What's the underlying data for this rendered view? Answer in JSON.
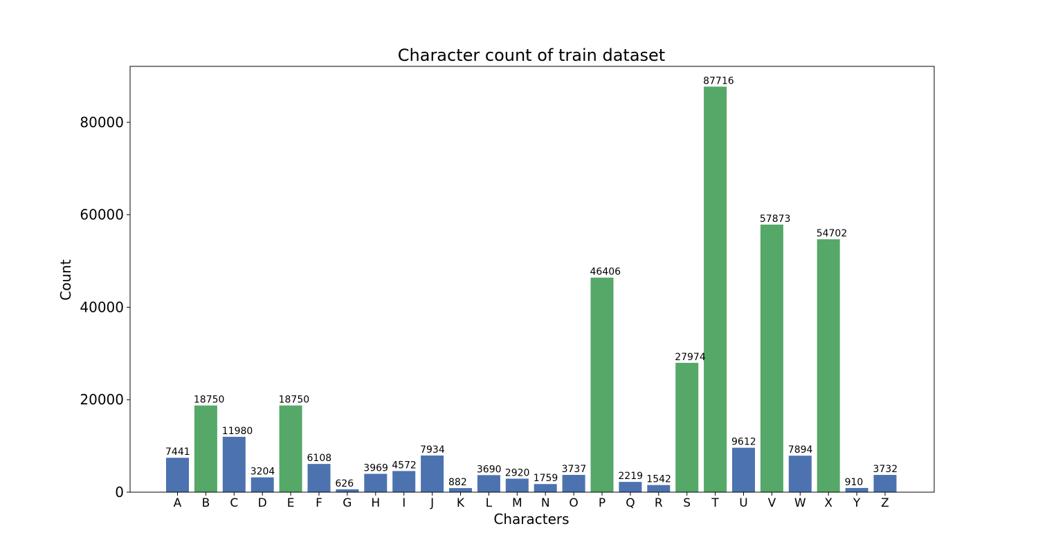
{
  "chart_data": {
    "type": "bar",
    "title": "Character count of train dataset",
    "xlabel": "Characters",
    "ylabel": "Count",
    "categories": [
      "A",
      "B",
      "C",
      "D",
      "E",
      "F",
      "G",
      "H",
      "I",
      "J",
      "K",
      "L",
      "M",
      "N",
      "O",
      "P",
      "Q",
      "R",
      "S",
      "T",
      "U",
      "V",
      "W",
      "X",
      "Y",
      "Z"
    ],
    "values": [
      7441,
      18750,
      11980,
      3204,
      18750,
      6108,
      626,
      3969,
      4572,
      7934,
      882,
      3690,
      2920,
      1759,
      3737,
      46406,
      2219,
      1542,
      27974,
      87716,
      9612,
      57873,
      7894,
      54702,
      910,
      3732
    ],
    "highlighted": [
      false,
      true,
      false,
      false,
      true,
      false,
      false,
      false,
      false,
      false,
      false,
      false,
      false,
      false,
      false,
      true,
      false,
      false,
      true,
      true,
      false,
      true,
      false,
      true,
      false,
      false
    ],
    "ylim": [
      0,
      92100
    ],
    "yticks": [
      0,
      20000,
      40000,
      60000,
      80000
    ],
    "ytick_labels": [
      "0",
      "20000",
      "40000",
      "60000",
      "80000"
    ],
    "grid": false,
    "colors": {
      "default_bar": "#4c72b0",
      "highlight_bar": "#55a868",
      "axis": "#000000"
    }
  }
}
